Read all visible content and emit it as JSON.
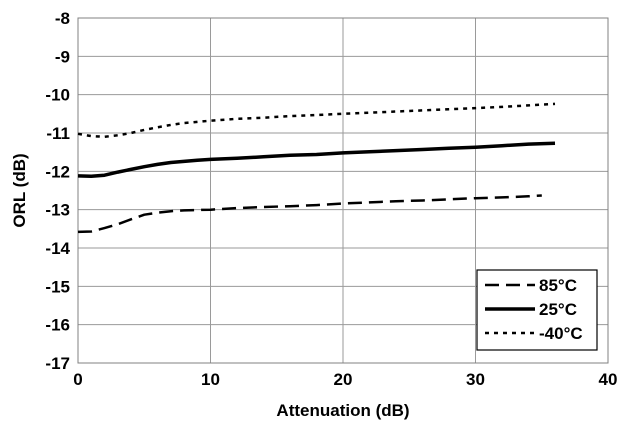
{
  "chart_data": {
    "type": "line",
    "title": "",
    "xlabel": "Attenuation (dB)",
    "ylabel": "ORL (dB)",
    "xlim": [
      0,
      40
    ],
    "ylim": [
      -17,
      -8
    ],
    "x_ticks": [
      "0",
      "10",
      "20",
      "30",
      "40"
    ],
    "y_ticks": [
      "-8",
      "-9",
      "-10",
      "-11",
      "-12",
      "-13",
      "-14",
      "-15",
      "-16",
      "-17"
    ],
    "grid": true,
    "legend_position": "bottom-right",
    "series": [
      {
        "name": "85°C",
        "style": "dashed",
        "color": "#000000",
        "x": [
          0,
          1,
          2,
          3,
          4,
          5,
          6,
          7,
          8,
          9,
          10,
          12,
          14,
          16,
          18,
          20,
          22,
          24,
          26,
          28,
          30,
          32,
          34,
          35
        ],
        "y": [
          -13.58,
          -13.57,
          -13.48,
          -13.38,
          -13.25,
          -13.13,
          -13.08,
          -13.04,
          -13.02,
          -13.01,
          -13.0,
          -12.96,
          -12.93,
          -12.91,
          -12.88,
          -12.84,
          -12.81,
          -12.78,
          -12.76,
          -12.73,
          -12.7,
          -12.68,
          -12.65,
          -12.63
        ]
      },
      {
        "name": "25°C",
        "style": "solid",
        "color": "#000000",
        "x": [
          0,
          1,
          2,
          3,
          4,
          5,
          6,
          7,
          8,
          9,
          10,
          12,
          14,
          16,
          18,
          20,
          22,
          24,
          26,
          28,
          30,
          32,
          34,
          36
        ],
        "y": [
          -12.12,
          -12.13,
          -12.1,
          -12.02,
          -11.95,
          -11.88,
          -11.82,
          -11.77,
          -11.74,
          -11.71,
          -11.69,
          -11.66,
          -11.62,
          -11.58,
          -11.56,
          -11.52,
          -11.49,
          -11.46,
          -11.43,
          -11.4,
          -11.37,
          -11.33,
          -11.29,
          -11.27
        ]
      },
      {
        "name": "-40°C",
        "style": "dotted",
        "color": "#000000",
        "x": [
          0,
          1,
          2,
          3,
          4,
          5,
          6,
          7,
          8,
          9,
          10,
          12,
          14,
          16,
          18,
          20,
          22,
          24,
          26,
          28,
          30,
          32,
          34,
          36
        ],
        "y": [
          -11.02,
          -11.08,
          -11.1,
          -11.06,
          -11.0,
          -10.92,
          -10.85,
          -10.79,
          -10.74,
          -10.71,
          -10.68,
          -10.63,
          -10.6,
          -10.56,
          -10.53,
          -10.5,
          -10.47,
          -10.44,
          -10.41,
          -10.38,
          -10.35,
          -10.32,
          -10.28,
          -10.24
        ]
      }
    ]
  }
}
